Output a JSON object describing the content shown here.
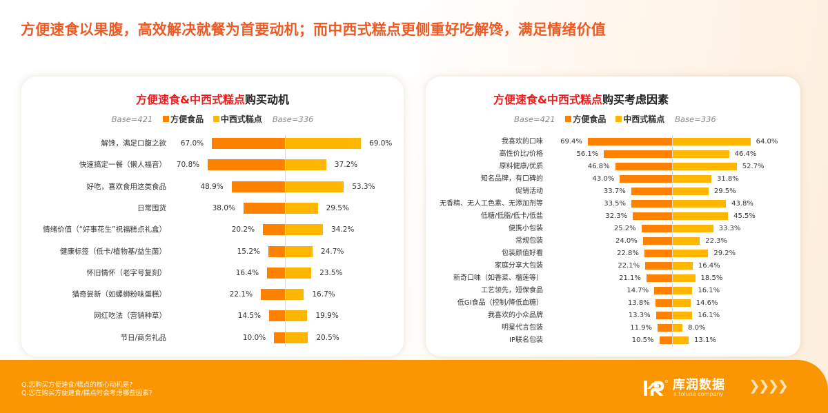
{
  "headline": "方便速食以果腹，高效解决就餐为首要动机；而中西式糕点更侧重好吃解馋，满足情绪价值",
  "colors": {
    "headline": "#ee5a24",
    "title_highlight": "#ee1c1c",
    "series_instant": "#fe8200",
    "series_pastry": "#ffb600",
    "footer_bg": "#fa9601"
  },
  "legend": {
    "base_left": "Base=421",
    "series_instant": "方便食品",
    "series_pastry": "中西式糕点",
    "base_right": "Base=336"
  },
  "left_card": {
    "title_highlight": "方便速食&中西式糕点",
    "title_rest": "购买动机"
  },
  "right_card": {
    "title_highlight": "方便速食&中西式糕点",
    "title_rest": "购买考虑因素"
  },
  "footer": {
    "question_1": "Q.您购买方便速食/糕点的核心动机是?",
    "question_2": "Q.您在购买方便速食/糕点时会考虑哪些因素?",
    "brand_name": "库润数据",
    "brand_sub": "a toluna company",
    "brand_arrows": "❯❯❯❯",
    "logo_icon": "kr-logo-icon"
  },
  "chart_data": [
    {
      "type": "bar",
      "orientation": "horizontal-butterfly",
      "title": "方便速食&中西式糕点购买动机",
      "categories": [
        "解馋，满足口腹之欲",
        "快速搞定一餐（懒人福音）",
        "好吃，喜欢食用这类食品",
        "日常囤货",
        "情绪价值（“好事花生”祝福糕点礼盒）",
        "健康标签（低卡/植物基/益生菌）",
        "怀旧情怀（老字号复刻）",
        "猎奇尝新（如螺蛳粉味蛋糕）",
        "网红吃法（营销种草）",
        "节日/商务礼品"
      ],
      "series": [
        {
          "name": "方便食品",
          "base": "Base=421",
          "values": [
            67.0,
            70.8,
            48.9,
            38.0,
            20.2,
            15.2,
            16.4,
            22.1,
            14.5,
            10.0
          ]
        },
        {
          "name": "中西式糕点",
          "base": "Base=336",
          "values": [
            69.0,
            37.2,
            53.3,
            29.5,
            34.2,
            24.7,
            23.5,
            16.7,
            19.9,
            20.5
          ]
        }
      ],
      "value_format": "%.1f%%",
      "legend_position": "top",
      "grid": false
    },
    {
      "type": "bar",
      "orientation": "horizontal-butterfly",
      "title": "方便速食&中西式糕点购买考虑因素",
      "categories": [
        "我喜欢的口味",
        "高性价比/价格",
        "原料健康/优质",
        "知名品牌，有口碑的",
        "促销活动",
        "无香精、无人工色素、无添加剂等",
        "低糖/低脂/低卡/低盐",
        "便携小包装",
        "常规包装",
        "包装颜值好看",
        "家庭分享大包装",
        "新奇口味（如香菜、榴莲等）",
        "工艺领先，短保食品",
        "低GI食品（控制/降低血糖）",
        "我喜欢的小众品牌",
        "明星代言包装",
        "IP联名包装"
      ],
      "series": [
        {
          "name": "方便食品",
          "base": "Base=421",
          "values": [
            69.4,
            56.1,
            46.8,
            43.0,
            33.7,
            33.5,
            32.3,
            25.2,
            24.0,
            22.8,
            22.1,
            21.1,
            14.7,
            13.8,
            13.3,
            11.9,
            10.5
          ]
        },
        {
          "name": "中西式糕点",
          "base": "Base=336",
          "values": [
            64.0,
            46.4,
            52.7,
            31.8,
            29.5,
            43.8,
            45.5,
            33.3,
            22.3,
            29.2,
            16.4,
            18.5,
            16.1,
            14.6,
            16.1,
            8.0,
            13.1
          ]
        }
      ],
      "value_format": "%.1f%%",
      "legend_position": "top",
      "grid": false
    }
  ]
}
